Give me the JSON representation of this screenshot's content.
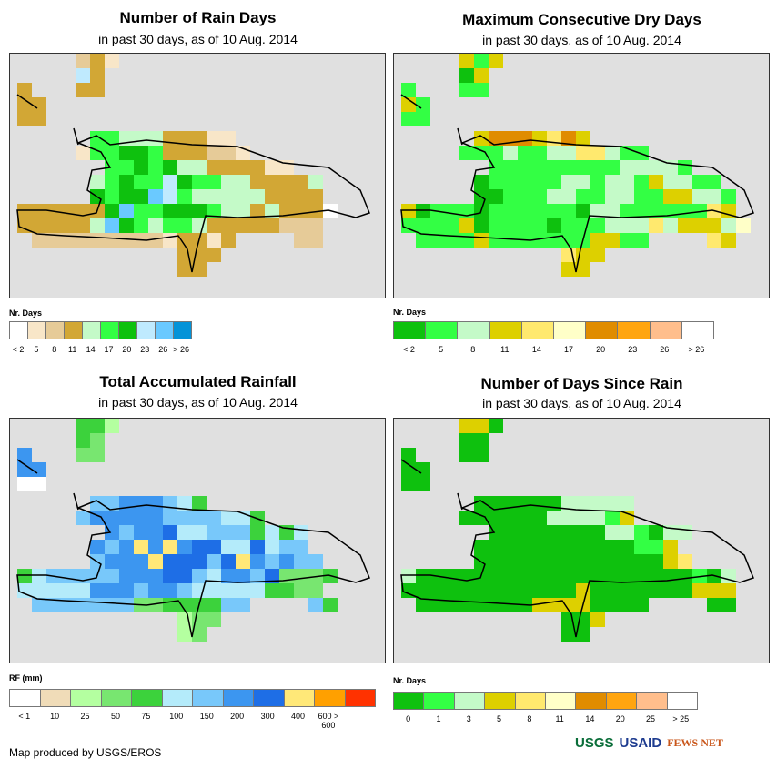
{
  "panels": [
    {
      "title": "Number of Rain Days",
      "subtitle": "in past 30 days, as of 10 Aug. 2014",
      "legend": {
        "title": "Nr. Days",
        "colors": [
          "#ffffff",
          "#f8e6c8",
          "#e6cb98",
          "#d2a735",
          "#c4fac8",
          "#33ff44",
          "#0ec10e",
          "#bfeafe",
          "#6ac9ff",
          "#0493d8"
        ],
        "labels": [
          "< 2",
          "5",
          "8",
          "11",
          "14",
          "17",
          "20",
          "23",
          "26",
          "> 26"
        ]
      },
      "grid": [
        "....231",
        "....73",
        "3...33",
        "33",
        "33",
        ".....5544433311",
        "....155665333221",
        "......5565644333311",
        ".....4565576554433334",
        ".....6566875444443333",
        "3333336855666544343330",
        "333334865455433333222",
        ".22222222213313....22",
        "...........333",
        "...........33"
      ]
    },
    {
      "title": "Maximum Consecutive Dry Days",
      "subtitle": "in past 30 days, as of 10 Aug. 2014",
      "legend": {
        "title": "Nr. Days",
        "colors": [
          "#0ec10e",
          "#33ff44",
          "#c4fac8",
          "#ddd000",
          "#ffe96e",
          "#ffffc8",
          "#e08c00",
          "#ffa510",
          "#ffbe8c",
          "#ffffff"
        ],
        "labels": [
          "< 2",
          "5",
          "8",
          "11",
          "14",
          "17",
          "20",
          "23",
          "26",
          "> 26"
        ]
      },
      "grid": [
        "....313",
        "....03",
        "1...11",
        "31",
        "11",
        ".....36663463",
        "....1112112244211",
        "......11111111122221",
        ".....01111122122132211",
        ".....001112211221133221",
        "30111011111102211111143",
        "111130111101112224233325",
        ".1111311111113311....43",
        "...........433",
        "...........33"
      ]
    },
    {
      "title": "Total Accumulated Rainfall",
      "subtitle": "in past 30 days, as of 10 Aug. 2014",
      "legend": {
        "title": "RF (mm)",
        "colors": [
          "#ffffff",
          "#f0dcb8",
          "#b4ffa0",
          "#78e670",
          "#3cd23c",
          "#b4ebfa",
          "#78c8fa",
          "#3c96f0",
          "#1e6ee6",
          "#ffe878",
          "#ffa000",
          "#ff3200"
        ],
        "labels": [
          "< 1",
          "10",
          "25",
          "50",
          "75",
          "100",
          "150",
          "200",
          "300",
          "400",
          "600 > 600",
          ""
        ]
      },
      "grid": [
        "....442",
        "....43",
        "7...33",
        "77",
        "00",
        ".....66777654",
        "....6777776666554",
        "......76778556664545",
        ".....767979788558566",
        ".....6777988868976766",
        "4566666777886577683334",
        "555557776776555554433",
        ".666666633444466....64",
        "...........233",
        "...........23"
      ]
    },
    {
      "title": "Number of Days Since Rain",
      "subtitle": "in past 30 days, as of 10 Aug. 2014",
      "legend": {
        "title": "Nr. Days",
        "colors": [
          "#0ec10e",
          "#33ff44",
          "#c4fac8",
          "#ddd000",
          "#ffe96e",
          "#ffffc8",
          "#e08c00",
          "#ffa510",
          "#ffbe8c",
          "#ffffff"
        ],
        "labels": [
          "0",
          "1",
          "3",
          "5",
          "8",
          "11",
          "14",
          "20",
          "25",
          "> 25"
        ]
      },
      "grid": [
        "....330",
        "....00",
        "0...00",
        "00",
        "00",
        ".....00000022222",
        "....000000222213",
        "......00000000221022",
        ".....00000000000113",
        ".....000000000000034",
        "20000000000000000000102",
        "00000000000030000000333",
        ".0000000033330000....00",
        "...........003",
        "...........00"
      ]
    }
  ],
  "footer": {
    "credit": "Map produced by USGS/EROS",
    "logos": [
      "USGS",
      "USAID",
      "FEWS NET"
    ]
  }
}
